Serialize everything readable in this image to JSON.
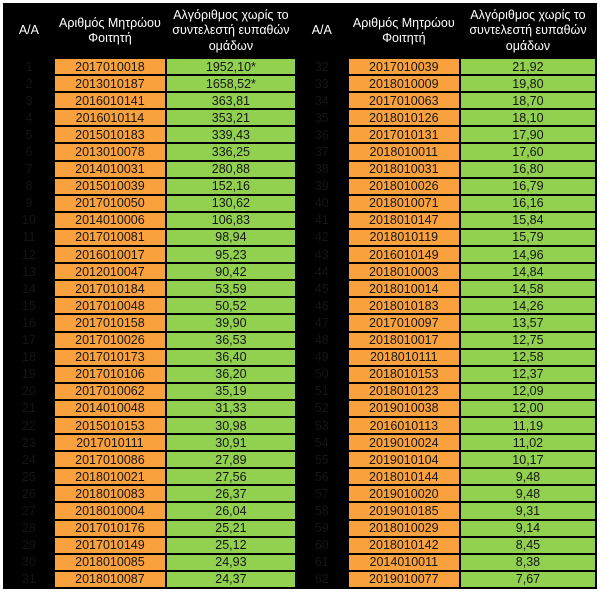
{
  "colors": {
    "header_bg": "#000000",
    "header_text": "#FFFFFF",
    "index_bg": "#000000",
    "index_text": "#FFFFFF",
    "student_id_bg": "#F9A13C",
    "score_bg": "#92D050",
    "cell_text": "#151515",
    "border": "#000000"
  },
  "table": {
    "headers": [
      "Α/Α",
      "Αριθμός Μητρώου Φοιτητή",
      "Αλγόριθμος χωρίς το συντελεστή ευπαθών ομάδων",
      "Α/Α",
      "Αριθμός Μητρώου Φοιτητή",
      "Αλγόριθμος χωρίς το συντελεστή ευπαθών ομάδων"
    ],
    "left_rows": [
      {
        "index": "1",
        "student_id": "2017010018",
        "score": "1952,10*"
      },
      {
        "index": "2",
        "student_id": "2013010187",
        "score": "1658,52*"
      },
      {
        "index": "3",
        "student_id": "2016010141",
        "score": "363,81"
      },
      {
        "index": "4",
        "student_id": "2016010114",
        "score": "353,21"
      },
      {
        "index": "5",
        "student_id": "2015010183",
        "score": "339,43"
      },
      {
        "index": "6",
        "student_id": "2013010078",
        "score": "336,25"
      },
      {
        "index": "7",
        "student_id": "2014010031",
        "score": "280,88"
      },
      {
        "index": "8",
        "student_id": "2015010039",
        "score": "152,16"
      },
      {
        "index": "9",
        "student_id": "2017010050",
        "score": "130,62"
      },
      {
        "index": "10",
        "student_id": "2014010006",
        "score": "106,83"
      },
      {
        "index": "11",
        "student_id": "2017010081",
        "score": "98,94"
      },
      {
        "index": "12",
        "student_id": "2016010017",
        "score": "95,23"
      },
      {
        "index": "13",
        "student_id": "2012010047",
        "score": "90,42"
      },
      {
        "index": "14",
        "student_id": "2017010184",
        "score": "53,59"
      },
      {
        "index": "15",
        "student_id": "2017010048",
        "score": "50,52"
      },
      {
        "index": "16",
        "student_id": "2017010158",
        "score": "39,90"
      },
      {
        "index": "17",
        "student_id": "2017010026",
        "score": "36,53"
      },
      {
        "index": "18",
        "student_id": "2017010173",
        "score": "36,40"
      },
      {
        "index": "19",
        "student_id": "2017010106",
        "score": "36,20"
      },
      {
        "index": "20",
        "student_id": "2017010062",
        "score": "35,19"
      },
      {
        "index": "21",
        "student_id": "2014010048",
        "score": "31,33"
      },
      {
        "index": "22",
        "student_id": "2015010153",
        "score": "30,98"
      },
      {
        "index": "23",
        "student_id": "2017010111",
        "score": "30,91"
      },
      {
        "index": "24",
        "student_id": "2017010086",
        "score": "27,89"
      },
      {
        "index": "25",
        "student_id": "2018010021",
        "score": "27,56"
      },
      {
        "index": "26",
        "student_id": "2018010083",
        "score": "26,37"
      },
      {
        "index": "27",
        "student_id": "2018010004",
        "score": "26,04"
      },
      {
        "index": "28",
        "student_id": "2017010176",
        "score": "25,21"
      },
      {
        "index": "29",
        "student_id": "2017010149",
        "score": "25,12"
      },
      {
        "index": "30",
        "student_id": "2018010085",
        "score": "24,93"
      },
      {
        "index": "31",
        "student_id": "2018010087",
        "score": "24,37"
      }
    ],
    "right_rows": [
      {
        "index": "32",
        "student_id": "2017010039",
        "score": "21,92"
      },
      {
        "index": "33",
        "student_id": "2018010009",
        "score": "19,80"
      },
      {
        "index": "34",
        "student_id": "2017010063",
        "score": "18,70"
      },
      {
        "index": "35",
        "student_id": "2018010126",
        "score": "18,10"
      },
      {
        "index": "36",
        "student_id": "2017010131",
        "score": "17,90"
      },
      {
        "index": "37",
        "student_id": "2018010011",
        "score": "17,60"
      },
      {
        "index": "38",
        "student_id": "2018010031",
        "score": "16,80"
      },
      {
        "index": "39",
        "student_id": "2018010026",
        "score": "16,79"
      },
      {
        "index": "40",
        "student_id": "2018010071",
        "score": "16,16"
      },
      {
        "index": "41",
        "student_id": "2018010147",
        "score": "15,84"
      },
      {
        "index": "42",
        "student_id": "2018010119",
        "score": "15,79"
      },
      {
        "index": "43",
        "student_id": "2016010149",
        "score": "14,96"
      },
      {
        "index": "44",
        "student_id": "2018010003",
        "score": "14,84"
      },
      {
        "index": "45",
        "student_id": "2018010014",
        "score": "14,58"
      },
      {
        "index": "46",
        "student_id": "2018010183",
        "score": "14,26"
      },
      {
        "index": "47",
        "student_id": "2017010097",
        "score": "13,57"
      },
      {
        "index": "48",
        "student_id": "2018010017",
        "score": "12,75"
      },
      {
        "index": "49",
        "student_id": "2018010111",
        "score": "12,58"
      },
      {
        "index": "50",
        "student_id": "2018010153",
        "score": "12,37"
      },
      {
        "index": "51",
        "student_id": "2018010123",
        "score": "12,09"
      },
      {
        "index": "52",
        "student_id": "2019010038",
        "score": "12,00"
      },
      {
        "index": "53",
        "student_id": "2016010113",
        "score": "11,19"
      },
      {
        "index": "54",
        "student_id": "2019010024",
        "score": "11,02"
      },
      {
        "index": "55",
        "student_id": "2019010104",
        "score": "10,17"
      },
      {
        "index": "56",
        "student_id": "2018010144",
        "score": "9,48"
      },
      {
        "index": "57",
        "student_id": "2019010020",
        "score": "9,48"
      },
      {
        "index": "58",
        "student_id": "2019010185",
        "score": "9,31"
      },
      {
        "index": "59",
        "student_id": "2018010029",
        "score": "9,14"
      },
      {
        "index": "60",
        "student_id": "2018010142",
        "score": "8,45"
      },
      {
        "index": "61",
        "student_id": "2014010011",
        "score": "8,38"
      },
      {
        "index": "62",
        "student_id": "2019010077",
        "score": "7,67"
      }
    ]
  }
}
